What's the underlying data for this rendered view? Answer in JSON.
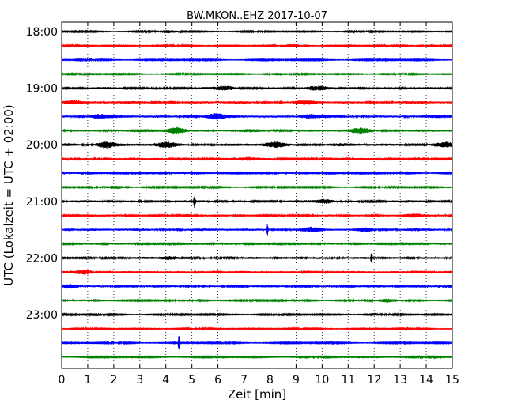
{
  "chart_data": {
    "type": "line",
    "title": "BW.MKON..EHZ 2017-10-07",
    "xlabel": "Zeit  [min]",
    "ylabel": "UTC (Lokalzeit = UTC + 02:00)",
    "xlim": [
      0,
      15
    ],
    "x_ticks": [
      0,
      1,
      2,
      3,
      4,
      5,
      6,
      7,
      8,
      9,
      10,
      11,
      12,
      13,
      14,
      15
    ],
    "y_tick_labels": [
      "18:00",
      "19:00",
      "20:00",
      "21:00",
      "22:00",
      "23:00"
    ],
    "grid": "vertical dotted",
    "trace_colors": [
      "#000000",
      "#ff0000",
      "#0000ff",
      "#008000"
    ],
    "traces": [
      {
        "start": "18:00",
        "amplitude": 0.8,
        "events": [
          {
            "t": 4.1,
            "amp": 1.6
          }
        ]
      },
      {
        "start": "18:15",
        "amplitude": 0.8,
        "events": [
          {
            "t": 8.9,
            "amp": 1.5
          },
          {
            "t": 14.2,
            "amp": 1.4
          }
        ]
      },
      {
        "start": "18:30",
        "amplitude": 0.8,
        "events": []
      },
      {
        "start": "18:45",
        "amplitude": 0.8,
        "events": [
          {
            "t": 8.3,
            "amp": 1.3
          }
        ]
      },
      {
        "start": "19:00",
        "amplitude": 1.4,
        "events": [
          {
            "t": 6.3,
            "amp": 2.0
          },
          {
            "t": 9.8,
            "amp": 1.8
          }
        ]
      },
      {
        "start": "19:15",
        "amplitude": 1.6,
        "events": [
          {
            "t": 0.4,
            "amp": 2.0
          },
          {
            "t": 9.4,
            "amp": 1.8
          }
        ]
      },
      {
        "start": "19:30",
        "amplitude": 1.8,
        "events": [
          {
            "t": 1.4,
            "amp": 2.5
          },
          {
            "t": 5.9,
            "amp": 2.6
          },
          {
            "t": 9.5,
            "amp": 2.0
          }
        ]
      },
      {
        "start": "19:45",
        "amplitude": 1.8,
        "events": [
          {
            "t": 4.4,
            "amp": 3.8
          },
          {
            "t": 11.5,
            "amp": 2.2
          }
        ]
      },
      {
        "start": "20:00",
        "amplitude": 1.8,
        "events": [
          {
            "t": 1.7,
            "amp": 3.6
          },
          {
            "t": 4.0,
            "amp": 2.4
          },
          {
            "t": 8.2,
            "amp": 2.4
          },
          {
            "t": 14.7,
            "amp": 2.2
          }
        ]
      },
      {
        "start": "20:15",
        "amplitude": 1.2,
        "events": [
          {
            "t": 7.1,
            "amp": 1.8
          }
        ]
      },
      {
        "start": "20:30",
        "amplitude": 1.0,
        "events": [
          {
            "t": 10.3,
            "amp": 1.8
          }
        ]
      },
      {
        "start": "20:45",
        "amplitude": 0.9,
        "events": [
          {
            "t": 2.1,
            "amp": 1.5
          }
        ]
      },
      {
        "start": "21:00",
        "amplitude": 1.4,
        "events": [
          {
            "t": 5.1,
            "amp": 9.0
          },
          {
            "t": 10.1,
            "amp": 2.4
          }
        ]
      },
      {
        "start": "21:15",
        "amplitude": 1.2,
        "events": [
          {
            "t": 13.5,
            "amp": 2.0
          }
        ]
      },
      {
        "start": "21:30",
        "amplitude": 1.6,
        "events": [
          {
            "t": 7.9,
            "amp": 8.0
          },
          {
            "t": 9.6,
            "amp": 2.2
          },
          {
            "t": 11.7,
            "amp": 2.0
          }
        ]
      },
      {
        "start": "21:45",
        "amplitude": 1.1,
        "events": []
      },
      {
        "start": "22:00",
        "amplitude": 1.3,
        "events": [
          {
            "t": 11.9,
            "amp": 9.0
          },
          {
            "t": 4.2,
            "amp": 1.8
          }
        ]
      },
      {
        "start": "22:15",
        "amplitude": 1.6,
        "events": [
          {
            "t": 0.9,
            "amp": 2.2
          }
        ]
      },
      {
        "start": "22:30",
        "amplitude": 1.4,
        "events": [
          {
            "t": 0.3,
            "amp": 2.0
          }
        ]
      },
      {
        "start": "22:45",
        "amplitude": 1.0,
        "events": [
          {
            "t": 12.5,
            "amp": 1.8
          }
        ]
      },
      {
        "start": "23:00",
        "amplitude": 0.9,
        "events": []
      },
      {
        "start": "23:15",
        "amplitude": 0.8,
        "events": []
      },
      {
        "start": "23:30",
        "amplitude": 0.8,
        "events": [
          {
            "t": 4.5,
            "amp": 10.0
          }
        ]
      },
      {
        "start": "23:45",
        "amplitude": 0.8,
        "events": []
      }
    ]
  }
}
